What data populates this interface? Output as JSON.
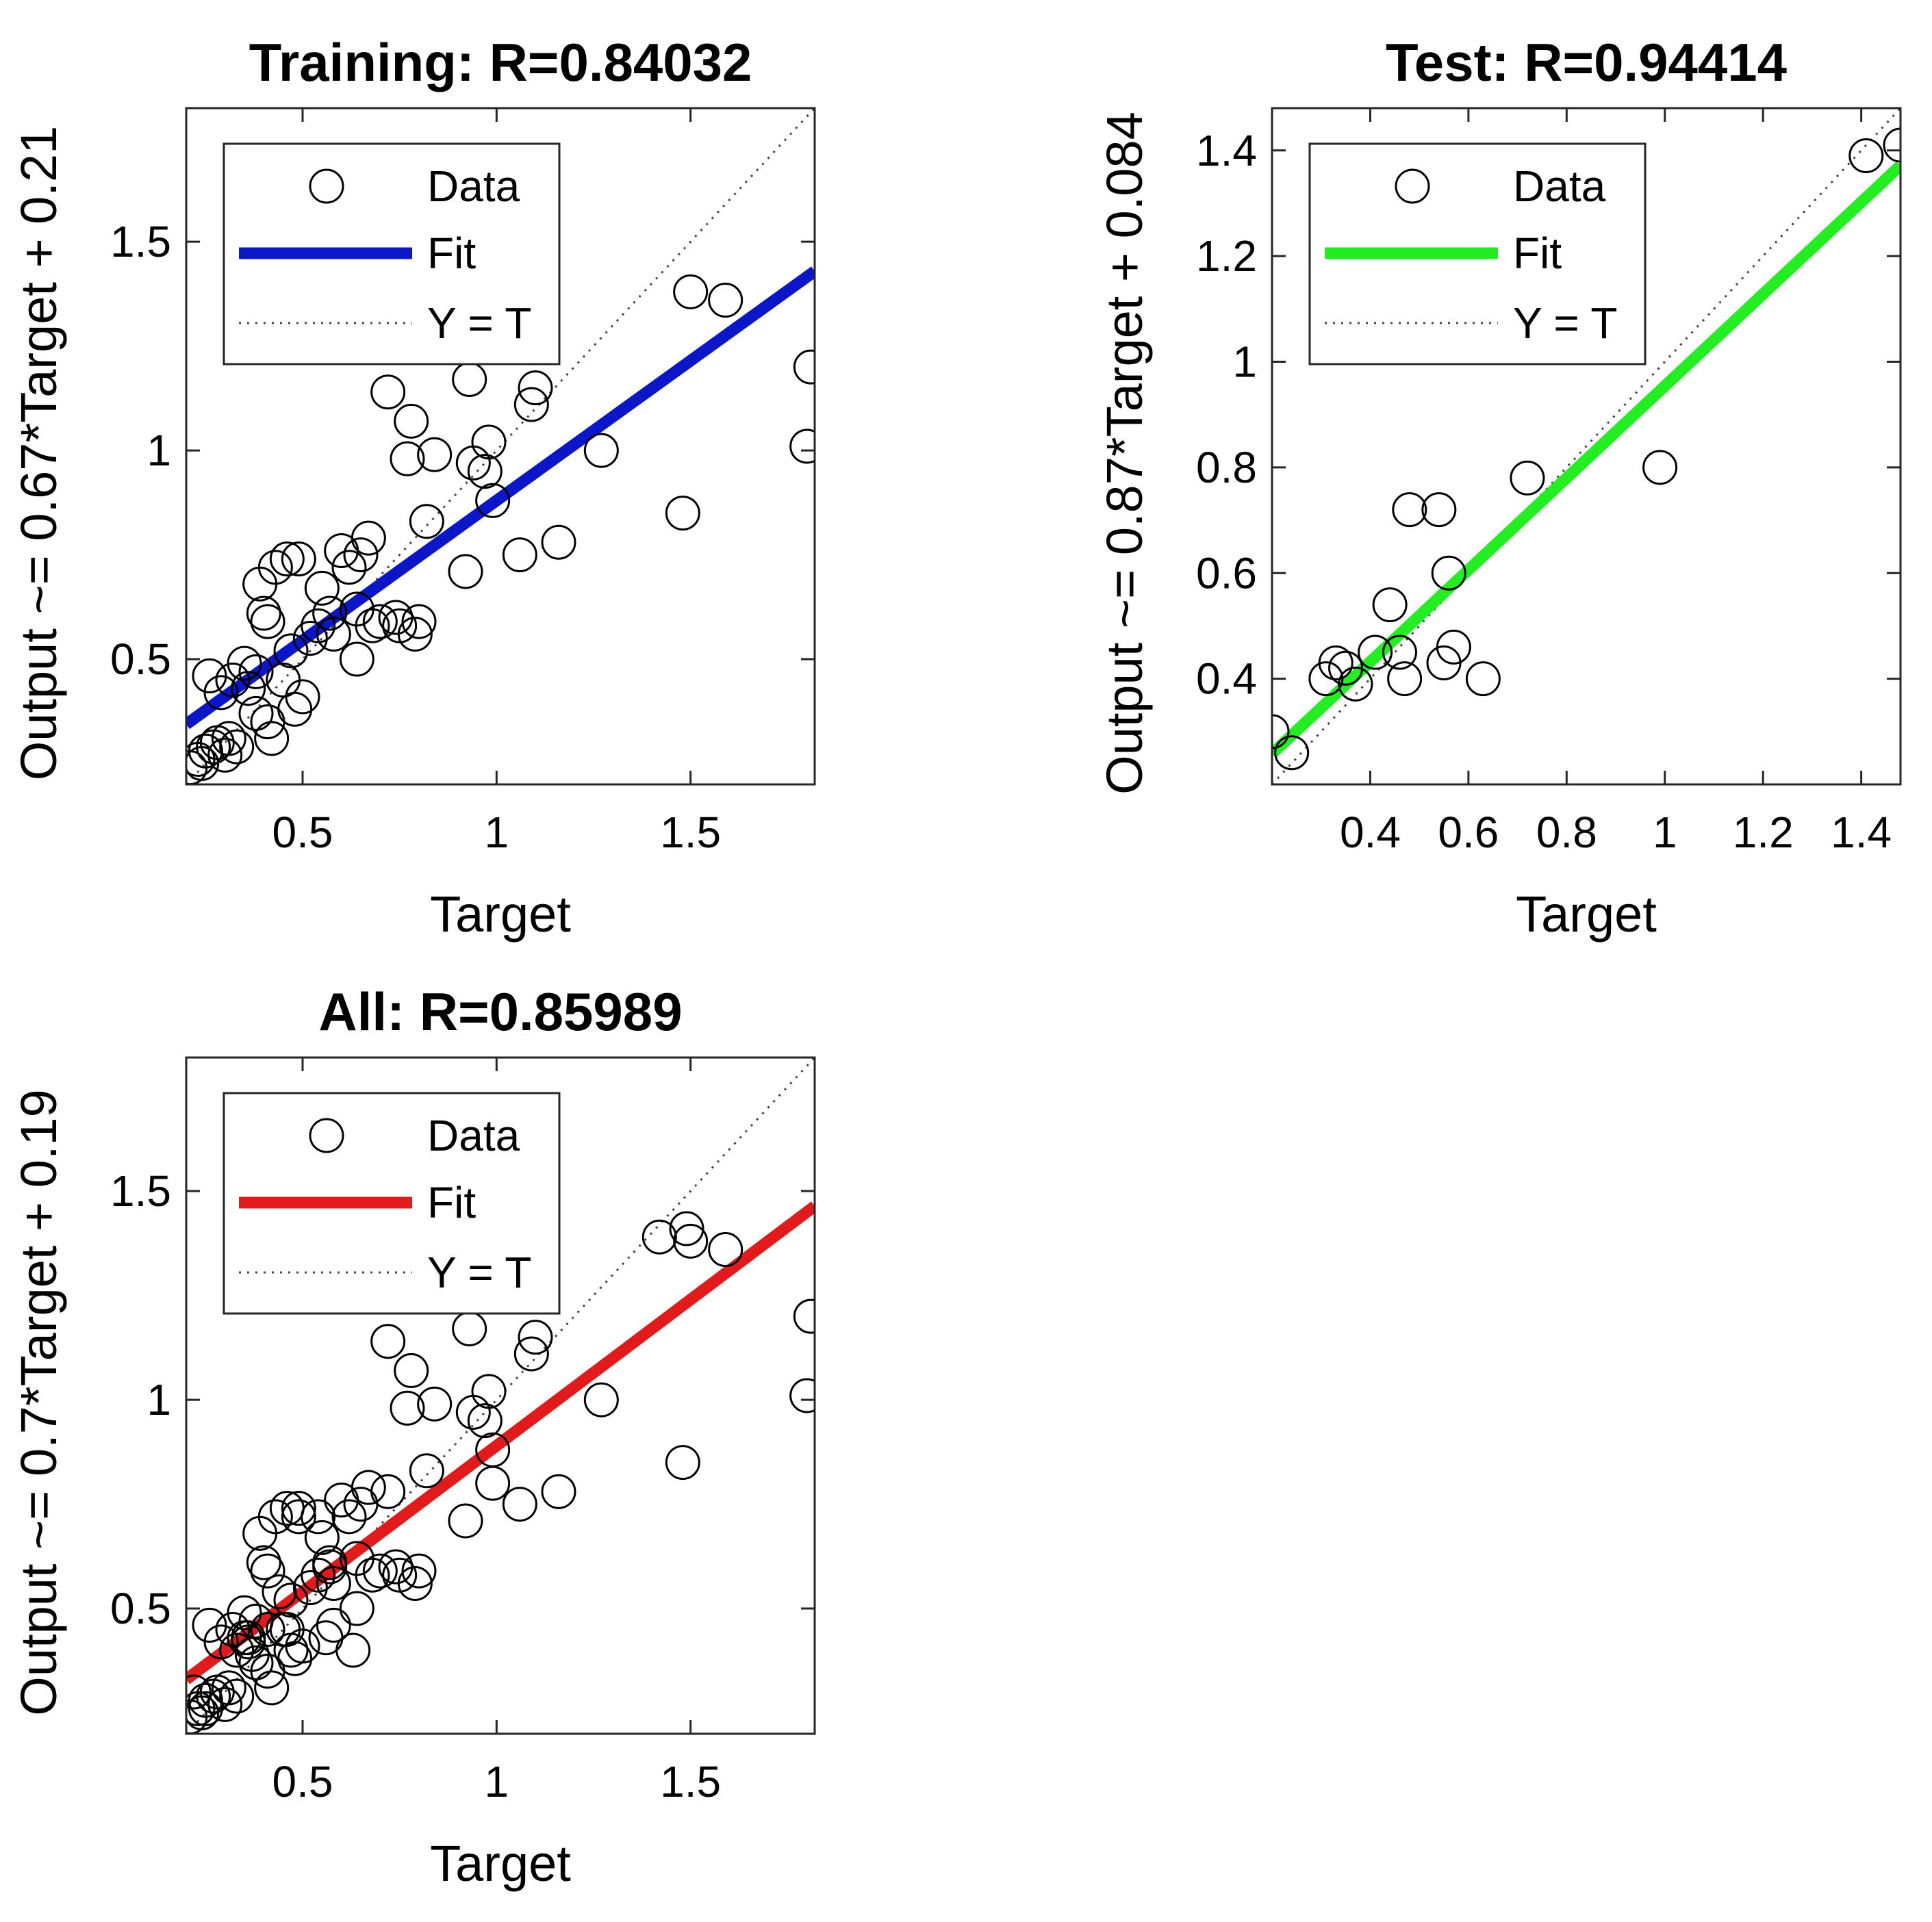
{
  "chart_data": [
    {
      "id": "training",
      "type": "scatter",
      "title": "Training: R=0.84032",
      "xlabel": "Target",
      "ylabel": "Output ~= 0.67*Target + 0.21",
      "xlim": [
        0.2,
        1.82
      ],
      "ylim": [
        0.2,
        1.82
      ],
      "xticks": [
        0.5,
        1,
        1.5
      ],
      "yticks": [
        0.5,
        1,
        1.5
      ],
      "fit": {
        "slope": 0.67,
        "intercept": 0.21,
        "color": "#0b16c8"
      },
      "legend": {
        "data_label": "Data",
        "fit_label": "Fit",
        "ref_label": "Y = T",
        "position": "top-left"
      },
      "points": [
        [
          0.21,
          0.24
        ],
        [
          0.23,
          0.26
        ],
        [
          0.24,
          0.25
        ],
        [
          0.25,
          0.28
        ],
        [
          0.27,
          0.29
        ],
        [
          0.28,
          0.3
        ],
        [
          0.3,
          0.27
        ],
        [
          0.31,
          0.31
        ],
        [
          0.33,
          0.29
        ],
        [
          0.26,
          0.46
        ],
        [
          0.29,
          0.42
        ],
        [
          0.32,
          0.45
        ],
        [
          0.35,
          0.49
        ],
        [
          0.36,
          0.43
        ],
        [
          0.38,
          0.47
        ],
        [
          0.38,
          0.37
        ],
        [
          0.41,
          0.35
        ],
        [
          0.42,
          0.31
        ],
        [
          0.4,
          0.61
        ],
        [
          0.41,
          0.59
        ],
        [
          0.39,
          0.68
        ],
        [
          0.43,
          0.72
        ],
        [
          0.46,
          0.74
        ],
        [
          0.49,
          0.74
        ],
        [
          0.45,
          0.45
        ],
        [
          0.47,
          0.52
        ],
        [
          0.48,
          0.38
        ],
        [
          0.5,
          0.41
        ],
        [
          0.52,
          0.55
        ],
        [
          0.54,
          0.58
        ],
        [
          0.55,
          0.67
        ],
        [
          0.57,
          0.61
        ],
        [
          0.58,
          0.56
        ],
        [
          0.6,
          0.76
        ],
        [
          0.62,
          0.72
        ],
        [
          0.64,
          0.62
        ],
        [
          0.64,
          0.5
        ],
        [
          0.65,
          0.75
        ],
        [
          0.67,
          0.79
        ],
        [
          0.68,
          0.58
        ],
        [
          0.7,
          0.59
        ],
        [
          0.72,
          1.14
        ],
        [
          0.74,
          0.6
        ],
        [
          0.75,
          0.58
        ],
        [
          0.77,
          0.98
        ],
        [
          0.78,
          1.07
        ],
        [
          0.79,
          0.56
        ],
        [
          0.8,
          0.59
        ],
        [
          0.82,
          0.83
        ],
        [
          0.84,
          0.99
        ],
        [
          0.92,
          0.71
        ],
        [
          0.93,
          1.17
        ],
        [
          0.94,
          0.97
        ],
        [
          0.97,
          0.95
        ],
        [
          0.98,
          1.02
        ],
        [
          0.99,
          0.88
        ],
        [
          1.06,
          0.75
        ],
        [
          1.09,
          1.11
        ],
        [
          1.1,
          1.15
        ],
        [
          1.16,
          0.78
        ],
        [
          1.27,
          1.0
        ],
        [
          1.48,
          0.85
        ],
        [
          1.5,
          1.38
        ],
        [
          1.59,
          1.36
        ],
        [
          1.8,
          1.01
        ],
        [
          1.81,
          1.2
        ]
      ]
    },
    {
      "id": "test",
      "type": "scatter",
      "title": "Test: R=0.94414",
      "xlabel": "Target",
      "ylabel": "Output ~= 0.87*Target + 0.084",
      "xlim": [
        0.2,
        1.48
      ],
      "ylim": [
        0.2,
        1.48
      ],
      "xticks": [
        0.4,
        0.6,
        0.8,
        1,
        1.2,
        1.4
      ],
      "yticks": [
        0.4,
        0.6,
        0.8,
        1,
        1.2,
        1.4
      ],
      "fit": {
        "slope": 0.87,
        "intercept": 0.084,
        "color": "#22ee22"
      },
      "legend": {
        "data_label": "Data",
        "fit_label": "Fit",
        "ref_label": "Y = T",
        "position": "top-left"
      },
      "points": [
        [
          0.2,
          0.3
        ],
        [
          0.24,
          0.26
        ],
        [
          0.31,
          0.4
        ],
        [
          0.33,
          0.43
        ],
        [
          0.35,
          0.42
        ],
        [
          0.37,
          0.39
        ],
        [
          0.41,
          0.45
        ],
        [
          0.44,
          0.54
        ],
        [
          0.46,
          0.45
        ],
        [
          0.47,
          0.4
        ],
        [
          0.48,
          0.72
        ],
        [
          0.54,
          0.72
        ],
        [
          0.55,
          0.43
        ],
        [
          0.56,
          0.6
        ],
        [
          0.57,
          0.46
        ],
        [
          0.63,
          0.4
        ],
        [
          0.72,
          0.78
        ],
        [
          0.99,
          0.8
        ],
        [
          1.41,
          1.39
        ],
        [
          1.48,
          1.41
        ]
      ]
    },
    {
      "id": "all",
      "type": "scatter",
      "title": "All: R=0.85989",
      "xlabel": "Target",
      "ylabel": "Output ~= 0.7*Target + 0.19",
      "xlim": [
        0.2,
        1.82
      ],
      "ylim": [
        0.2,
        1.82
      ],
      "xticks": [
        0.5,
        1,
        1.5
      ],
      "yticks": [
        0.5,
        1,
        1.5
      ],
      "fit": {
        "slope": 0.7,
        "intercept": 0.19,
        "color": "#e11b1b"
      },
      "legend": {
        "data_label": "Data",
        "fit_label": "Fit",
        "ref_label": "Y = T",
        "position": "top-left"
      },
      "points": [
        [
          0.21,
          0.24
        ],
        [
          0.23,
          0.26
        ],
        [
          0.24,
          0.25
        ],
        [
          0.25,
          0.28
        ],
        [
          0.27,
          0.29
        ],
        [
          0.28,
          0.3
        ],
        [
          0.3,
          0.27
        ],
        [
          0.31,
          0.31
        ],
        [
          0.33,
          0.29
        ],
        [
          0.26,
          0.46
        ],
        [
          0.29,
          0.42
        ],
        [
          0.32,
          0.45
        ],
        [
          0.35,
          0.49
        ],
        [
          0.36,
          0.43
        ],
        [
          0.38,
          0.47
        ],
        [
          0.38,
          0.37
        ],
        [
          0.41,
          0.35
        ],
        [
          0.42,
          0.31
        ],
        [
          0.4,
          0.61
        ],
        [
          0.41,
          0.59
        ],
        [
          0.39,
          0.68
        ],
        [
          0.43,
          0.72
        ],
        [
          0.46,
          0.74
        ],
        [
          0.49,
          0.74
        ],
        [
          0.45,
          0.45
        ],
        [
          0.47,
          0.52
        ],
        [
          0.48,
          0.38
        ],
        [
          0.5,
          0.41
        ],
        [
          0.52,
          0.55
        ],
        [
          0.54,
          0.58
        ],
        [
          0.55,
          0.67
        ],
        [
          0.57,
          0.61
        ],
        [
          0.58,
          0.56
        ],
        [
          0.6,
          0.76
        ],
        [
          0.62,
          0.72
        ],
        [
          0.64,
          0.62
        ],
        [
          0.64,
          0.5
        ],
        [
          0.65,
          0.75
        ],
        [
          0.67,
          0.79
        ],
        [
          0.68,
          0.58
        ],
        [
          0.7,
          0.59
        ],
        [
          0.72,
          1.14
        ],
        [
          0.74,
          0.6
        ],
        [
          0.75,
          0.58
        ],
        [
          0.77,
          0.98
        ],
        [
          0.78,
          1.07
        ],
        [
          0.79,
          0.56
        ],
        [
          0.8,
          0.59
        ],
        [
          0.82,
          0.83
        ],
        [
          0.84,
          0.99
        ],
        [
          0.92,
          0.71
        ],
        [
          0.93,
          1.17
        ],
        [
          0.94,
          0.97
        ],
        [
          0.97,
          0.95
        ],
        [
          0.98,
          1.02
        ],
        [
          0.99,
          0.88
        ],
        [
          1.06,
          0.75
        ],
        [
          1.09,
          1.11
        ],
        [
          1.1,
          1.15
        ],
        [
          1.16,
          0.78
        ],
        [
          1.27,
          1.0
        ],
        [
          1.48,
          0.85
        ],
        [
          1.5,
          1.38
        ],
        [
          1.59,
          1.36
        ],
        [
          1.8,
          1.01
        ],
        [
          1.81,
          1.2
        ],
        [
          0.22,
          0.3
        ],
        [
          0.25,
          0.26
        ],
        [
          0.33,
          0.4
        ],
        [
          0.35,
          0.43
        ],
        [
          0.36,
          0.42
        ],
        [
          0.37,
          0.39
        ],
        [
          0.41,
          0.45
        ],
        [
          0.44,
          0.54
        ],
        [
          0.46,
          0.45
        ],
        [
          0.47,
          0.4
        ],
        [
          0.49,
          0.72
        ],
        [
          0.54,
          0.72
        ],
        [
          0.56,
          0.43
        ],
        [
          0.57,
          0.6
        ],
        [
          0.58,
          0.46
        ],
        [
          0.63,
          0.4
        ],
        [
          0.72,
          0.78
        ],
        [
          0.99,
          0.8
        ],
        [
          1.42,
          1.39
        ],
        [
          1.49,
          1.41
        ]
      ]
    }
  ]
}
